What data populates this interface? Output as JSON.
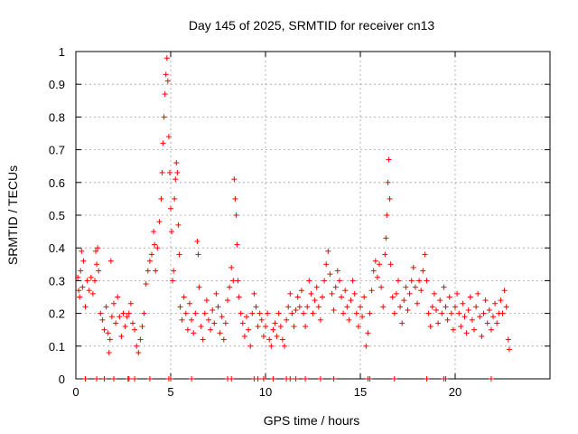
{
  "chart_data": {
    "type": "scatter",
    "title": "Day 145 of 2025, SRMTID for receiver cn13",
    "xlabel": "GPS time / hours",
    "ylabel": "SRMTID / TECUs",
    "xlim": [
      0,
      25
    ],
    "ylim": [
      0,
      1
    ],
    "x_ticks": [
      0,
      5,
      10,
      15,
      20
    ],
    "x_tick_labels": [
      "0",
      "5",
      "10",
      "15",
      "20"
    ],
    "y_ticks": [
      0,
      0.1,
      0.2,
      0.3,
      0.4,
      0.5,
      0.6,
      0.7,
      0.8,
      0.9,
      1
    ],
    "y_tick_labels": [
      "0",
      "0.1",
      "0.2",
      "0.3",
      "0.4",
      "0.5",
      "0.6",
      "0.7",
      "0.8",
      "0.9",
      "1"
    ],
    "grid": true,
    "marker": "plus",
    "color": "#ff0000",
    "series": [
      {
        "name": "SRMTID",
        "points": [
          [
            0.1,
            0.31
          ],
          [
            0.15,
            0.27
          ],
          [
            0.2,
            0.25
          ],
          [
            0.25,
            0.33
          ],
          [
            0.3,
            0.39
          ],
          [
            0.35,
            0.28
          ],
          [
            0.4,
            0.36
          ],
          [
            0.5,
            0.22
          ],
          [
            0.6,
            0.3
          ],
          [
            0.7,
            0.27
          ],
          [
            0.8,
            0.31
          ],
          [
            0.9,
            0.26
          ],
          [
            1.0,
            0.3
          ],
          [
            1.05,
            0.39
          ],
          [
            1.1,
            0.35
          ],
          [
            1.15,
            0.4
          ],
          [
            1.2,
            0.33
          ],
          [
            1.3,
            0.2
          ],
          [
            1.4,
            0.18
          ],
          [
            1.5,
            0.15
          ],
          [
            1.6,
            0.22
          ],
          [
            1.7,
            0.14
          ],
          [
            1.75,
            0.08
          ],
          [
            1.8,
            0.12
          ],
          [
            1.85,
            0.36
          ],
          [
            1.9,
            0.19
          ],
          [
            2.0,
            0.23
          ],
          [
            2.1,
            0.17
          ],
          [
            2.2,
            0.25
          ],
          [
            2.3,
            0.19
          ],
          [
            2.4,
            0.13
          ],
          [
            2.5,
            0.2
          ],
          [
            2.6,
            0.16
          ],
          [
            2.7,
            0.19
          ],
          [
            2.8,
            0.2
          ],
          [
            2.9,
            0.23
          ],
          [
            3.0,
            0.17
          ],
          [
            3.1,
            0.15
          ],
          [
            3.2,
            0.1
          ],
          [
            3.3,
            0.08
          ],
          [
            3.4,
            0.12
          ],
          [
            3.5,
            0.16
          ],
          [
            3.6,
            0.2
          ],
          [
            3.7,
            0.29
          ],
          [
            3.8,
            0.33
          ],
          [
            3.9,
            0.36
          ],
          [
            4.0,
            0.38
          ],
          [
            4.1,
            0.45
          ],
          [
            4.15,
            0.41
          ],
          [
            4.2,
            0.33
          ],
          [
            4.3,
            0.4
          ],
          [
            4.4,
            0.48
          ],
          [
            4.5,
            0.55
          ],
          [
            4.55,
            0.63
          ],
          [
            4.6,
            0.72
          ],
          [
            4.65,
            0.8
          ],
          [
            4.7,
            0.87
          ],
          [
            4.75,
            0.93
          ],
          [
            4.8,
            0.98
          ],
          [
            4.85,
            0.91
          ],
          [
            4.9,
            0.74
          ],
          [
            4.95,
            0.63
          ],
          [
            5.0,
            0.52
          ],
          [
            5.05,
            0.45
          ],
          [
            5.1,
            0.3
          ],
          [
            5.15,
            0.33
          ],
          [
            5.2,
            0.55
          ],
          [
            5.25,
            0.61
          ],
          [
            5.3,
            0.66
          ],
          [
            5.35,
            0.63
          ],
          [
            5.4,
            0.47
          ],
          [
            5.45,
            0.38
          ],
          [
            5.5,
            0.22
          ],
          [
            5.6,
            0.18
          ],
          [
            5.7,
            0.25
          ],
          [
            5.8,
            0.2
          ],
          [
            5.9,
            0.15
          ],
          [
            6.0,
            0.23
          ],
          [
            6.1,
            0.18
          ],
          [
            6.2,
            0.14
          ],
          [
            6.3,
            0.2
          ],
          [
            6.4,
            0.42
          ],
          [
            6.45,
            0.38
          ],
          [
            6.5,
            0.28
          ],
          [
            6.6,
            0.16
          ],
          [
            6.7,
            0.12
          ],
          [
            6.8,
            0.2
          ],
          [
            6.9,
            0.24
          ],
          [
            7.0,
            0.18
          ],
          [
            7.1,
            0.15
          ],
          [
            7.2,
            0.21
          ],
          [
            7.3,
            0.17
          ],
          [
            7.4,
            0.26
          ],
          [
            7.5,
            0.22
          ],
          [
            7.6,
            0.14
          ],
          [
            7.7,
            0.19
          ],
          [
            7.8,
            0.12
          ],
          [
            7.9,
            0.17
          ],
          [
            8.0,
            0.24
          ],
          [
            8.1,
            0.28
          ],
          [
            8.2,
            0.34
          ],
          [
            8.3,
            0.3
          ],
          [
            8.35,
            0.61
          ],
          [
            8.4,
            0.55
          ],
          [
            8.45,
            0.5
          ],
          [
            8.5,
            0.41
          ],
          [
            8.55,
            0.3
          ],
          [
            8.6,
            0.25
          ],
          [
            8.7,
            0.2
          ],
          [
            8.8,
            0.17
          ],
          [
            8.9,
            0.13
          ],
          [
            9.0,
            0.19
          ],
          [
            9.1,
            0.15
          ],
          [
            9.2,
            0.1
          ],
          [
            9.3,
            0.2
          ],
          [
            9.4,
            0.26
          ],
          [
            9.5,
            0.22
          ],
          [
            9.6,
            0.16
          ],
          [
            9.7,
            0.2
          ],
          [
            9.8,
            0.18
          ],
          [
            9.9,
            0.13
          ],
          [
            10.0,
            0.16
          ],
          [
            10.1,
            0.2
          ],
          [
            10.2,
            0.12
          ],
          [
            10.3,
            0.1
          ],
          [
            10.4,
            0.15
          ],
          [
            10.5,
            0.17
          ],
          [
            10.6,
            0.13
          ],
          [
            10.7,
            0.2
          ],
          [
            10.8,
            0.16
          ],
          [
            10.9,
            0.12
          ],
          [
            11.0,
            0.1
          ],
          [
            11.1,
            0.18
          ],
          [
            11.2,
            0.22
          ],
          [
            11.3,
            0.26
          ],
          [
            11.4,
            0.2
          ],
          [
            11.5,
            0.16
          ],
          [
            11.6,
            0.21
          ],
          [
            11.7,
            0.25
          ],
          [
            11.8,
            0.22
          ],
          [
            11.9,
            0.27
          ],
          [
            12.0,
            0.2
          ],
          [
            12.1,
            0.16
          ],
          [
            12.2,
            0.22
          ],
          [
            12.3,
            0.3
          ],
          [
            12.4,
            0.26
          ],
          [
            12.5,
            0.2
          ],
          [
            12.6,
            0.24
          ],
          [
            12.7,
            0.28
          ],
          [
            12.8,
            0.22
          ],
          [
            12.9,
            0.18
          ],
          [
            13.0,
            0.25
          ],
          [
            13.1,
            0.3
          ],
          [
            13.2,
            0.35
          ],
          [
            13.3,
            0.39
          ],
          [
            13.4,
            0.32
          ],
          [
            13.5,
            0.26
          ],
          [
            13.6,
            0.21
          ],
          [
            13.7,
            0.28
          ],
          [
            13.8,
            0.33
          ],
          [
            13.9,
            0.3
          ],
          [
            14.0,
            0.25
          ],
          [
            14.1,
            0.2
          ],
          [
            14.2,
            0.27
          ],
          [
            14.3,
            0.22
          ],
          [
            14.4,
            0.18
          ],
          [
            14.5,
            0.24
          ],
          [
            14.6,
            0.3
          ],
          [
            14.7,
            0.26
          ],
          [
            14.8,
            0.2
          ],
          [
            14.9,
            0.16
          ],
          [
            15.0,
            0.22
          ],
          [
            15.1,
            0.19
          ],
          [
            15.2,
            0.25
          ],
          [
            15.3,
            0.1
          ],
          [
            15.4,
            0.14
          ],
          [
            15.5,
            0.2
          ],
          [
            15.6,
            0.27
          ],
          [
            15.7,
            0.33
          ],
          [
            15.8,
            0.36
          ],
          [
            15.9,
            0.31
          ],
          [
            16.0,
            0.35
          ],
          [
            16.1,
            0.28
          ],
          [
            16.2,
            0.22
          ],
          [
            16.3,
            0.38
          ],
          [
            16.35,
            0.43
          ],
          [
            16.4,
            0.5
          ],
          [
            16.45,
            0.6
          ],
          [
            16.5,
            0.67
          ],
          [
            16.55,
            0.55
          ],
          [
            16.6,
            0.35
          ],
          [
            16.7,
            0.25
          ],
          [
            16.8,
            0.2
          ],
          [
            16.9,
            0.26
          ],
          [
            17.0,
            0.3
          ],
          [
            17.1,
            0.22
          ],
          [
            17.2,
            0.17
          ],
          [
            17.3,
            0.24
          ],
          [
            17.4,
            0.28
          ],
          [
            17.5,
            0.21
          ],
          [
            17.6,
            0.26
          ],
          [
            17.7,
            0.3
          ],
          [
            17.8,
            0.34
          ],
          [
            17.9,
            0.28
          ],
          [
            18.0,
            0.23
          ],
          [
            18.1,
            0.3
          ],
          [
            18.2,
            0.27
          ],
          [
            18.3,
            0.33
          ],
          [
            18.4,
            0.38
          ],
          [
            18.5,
            0.3
          ],
          [
            18.6,
            0.2
          ],
          [
            18.7,
            0.16
          ],
          [
            18.8,
            0.22
          ],
          [
            18.9,
            0.26
          ],
          [
            19.0,
            0.21
          ],
          [
            19.1,
            0.17
          ],
          [
            19.2,
            0.24
          ],
          [
            19.3,
            0.2
          ],
          [
            19.4,
            0.28
          ],
          [
            19.5,
            0.22
          ],
          [
            19.6,
            0.18
          ],
          [
            19.7,
            0.25
          ],
          [
            19.8,
            0.2
          ],
          [
            19.9,
            0.15
          ],
          [
            20.0,
            0.22
          ],
          [
            20.1,
            0.26
          ],
          [
            20.2,
            0.2
          ],
          [
            20.3,
            0.16
          ],
          [
            20.4,
            0.23
          ],
          [
            20.5,
            0.19
          ],
          [
            20.6,
            0.14
          ],
          [
            20.7,
            0.21
          ],
          [
            20.8,
            0.25
          ],
          [
            20.9,
            0.18
          ],
          [
            21.0,
            0.15
          ],
          [
            21.1,
            0.22
          ],
          [
            21.2,
            0.26
          ],
          [
            21.3,
            0.19
          ],
          [
            21.4,
            0.13
          ],
          [
            21.5,
            0.2
          ],
          [
            21.6,
            0.24
          ],
          [
            21.7,
            0.17
          ],
          [
            21.8,
            0.21
          ],
          [
            21.9,
            0.15
          ],
          [
            22.0,
            0.19
          ],
          [
            22.1,
            0.23
          ],
          [
            22.2,
            0.17
          ],
          [
            22.3,
            0.2
          ],
          [
            22.4,
            0.24
          ],
          [
            22.5,
            0.2
          ],
          [
            22.6,
            0.27
          ],
          [
            22.7,
            0.22
          ],
          [
            22.8,
            0.12
          ],
          [
            22.85,
            0.09
          ]
        ]
      },
      {
        "name": "zero-line markers",
        "points": [
          [
            0.5,
            0
          ],
          [
            1.1,
            0
          ],
          [
            1.5,
            0
          ],
          [
            2.0,
            0
          ],
          [
            2.75,
            0
          ],
          [
            2.8,
            0
          ],
          [
            3.1,
            0
          ],
          [
            3.9,
            0
          ],
          [
            4.9,
            0
          ],
          [
            5.0,
            0
          ],
          [
            6.1,
            0
          ],
          [
            8.0,
            0
          ],
          [
            8.2,
            0
          ],
          [
            9.4,
            0
          ],
          [
            9.6,
            0
          ],
          [
            9.9,
            0
          ],
          [
            10.4,
            0
          ],
          [
            11.1,
            0
          ],
          [
            11.3,
            0
          ],
          [
            11.6,
            0
          ],
          [
            12.1,
            0
          ],
          [
            12.9,
            0
          ],
          [
            13.6,
            0
          ],
          [
            15.4,
            0
          ],
          [
            15.5,
            0
          ],
          [
            16.8,
            0
          ],
          [
            18.5,
            0
          ],
          [
            19.4,
            0
          ],
          [
            19.5,
            0
          ],
          [
            21.9,
            0
          ]
        ]
      }
    ]
  }
}
